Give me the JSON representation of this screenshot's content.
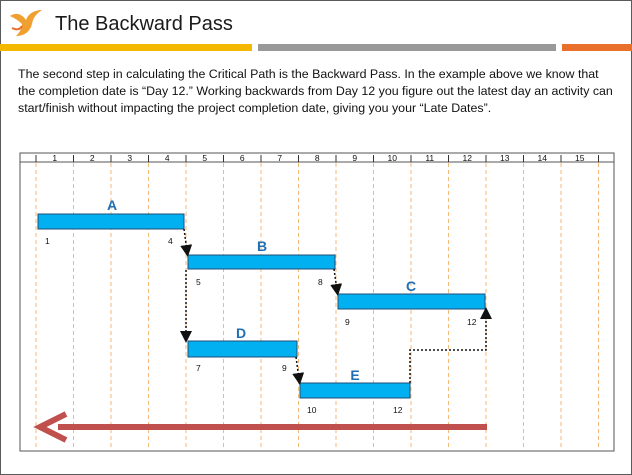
{
  "header": {
    "title": "The Backward Pass"
  },
  "intro": {
    "text": "The second step in calculating the Critical Path is the Backward Pass. In the example above we know that the completion date is “Day 12.” Working backwards from Day 12 you figure out the latest day an activity can start/finish without impacting the project completion date, giving you your “Late Dates”."
  },
  "timeline": {
    "days": [
      "1",
      "2",
      "3",
      "4",
      "5",
      "6",
      "7",
      "8",
      "9",
      "10",
      "11",
      "12",
      "13",
      "14",
      "15"
    ]
  },
  "tasks": [
    {
      "name": "A",
      "start": "1",
      "end": "4"
    },
    {
      "name": "B",
      "start": "5",
      "end": "8"
    },
    {
      "name": "C",
      "start": "9",
      "end": "12"
    },
    {
      "name": "D",
      "start": "7",
      "end": "9"
    },
    {
      "name": "E",
      "start": "10",
      "end": "12"
    }
  ],
  "colors": {
    "bar_fill": "#00b0f0",
    "bar_stroke": "#1f4e79",
    "task_label": "#1f6fb5",
    "arrow": "#c0504d",
    "gridline": "#f5b97a",
    "accent_yellow": "#f5b800",
    "accent_gray": "#999999",
    "accent_orange": "#e8702a"
  }
}
